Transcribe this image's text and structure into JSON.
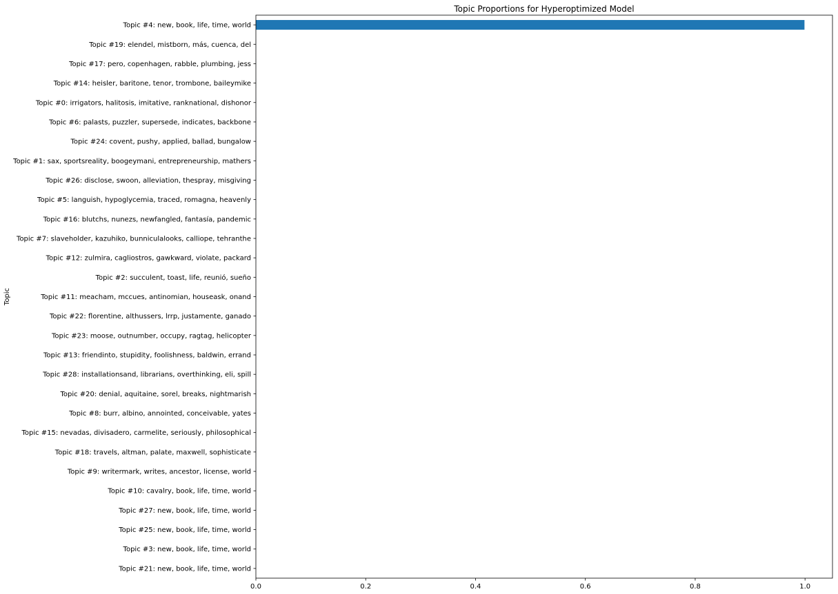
{
  "chart_data": {
    "type": "bar",
    "orientation": "horizontal",
    "title": "Topic Proportions for Hyperoptimized Model",
    "xlabel": "",
    "ylabel": "Topic",
    "xlim": [
      0,
      1.05
    ],
    "x_ticks": [
      "0.0",
      "0.2",
      "0.4",
      "0.6",
      "0.8",
      "1.0"
    ],
    "x_tick_values": [
      0,
      0.2,
      0.4,
      0.6,
      0.8,
      1.0
    ],
    "bar_color": "#1f77b4",
    "grid": false,
    "categories": [
      "Topic #4: new, book, life, time, world",
      "Topic #19: elendel, mistborn, más, cuenca, del",
      "Topic #17: pero, copenhagen, rabble, plumbing, jess",
      "Topic #14: heisler, baritone, tenor, trombone, baileymike",
      "Topic #0: irrigators, halitosis, imitative, ranknational, dishonor",
      "Topic #6: palasts, puzzler, supersede, indicates, backbone",
      "Topic #24: covent, pushy, applied, ballad, bungalow",
      "Topic #1: sax, sportsreality, boogeymani, entrepreneurship, mathers",
      "Topic #26: disclose, swoon, alleviation, thespray, misgiving",
      "Topic #5: languish, hypoglycemia, traced, romagna, heavenly",
      "Topic #16: blutchs, nunezs, newfangled, fantasía, pandemic",
      "Topic #7: slaveholder, kazuhiko, bunniculalooks, calliope, tehranthe",
      "Topic #12: zulmira, cagliostros, gawkward, violate, packard",
      "Topic #2: succulent, toast, life, reunió, sueño",
      "Topic #11: meacham, mccues, antinomian, houseask, onand",
      "Topic #22: florentine, althussers, lrrp, justamente, ganado",
      "Topic #23: moose, outnumber, occupy, ragtag, helicopter",
      "Topic #13: friendinto, stupidity, foolishness, baldwin, errand",
      "Topic #28: installationsand, librarians, overthinking, eli, spill",
      "Topic #20: denial, aquitaine, sorel, breaks, nightmarish",
      "Topic #8: burr, albino, annointed, conceivable, yates",
      "Topic #15: nevadas, divisadero, carmelite, seriously, philosophical",
      "Topic #18: travels, altman, palate, maxwell, sophisticate",
      "Topic #9: writermark, writes, ancestor, license, world",
      "Topic #10: cavalry, book, life, time, world",
      "Topic #27: new, book, life, time, world",
      "Topic #25: new, book, life, time, world",
      "Topic #3: new, book, life, time, world",
      "Topic #21: new, book, life, time, world"
    ],
    "values": [
      0.999,
      0.0001,
      0.0001,
      0.0001,
      0.0001,
      0.0001,
      0.0001,
      0.0001,
      0.0001,
      0.0001,
      0.0001,
      0.0001,
      0.0001,
      0.0001,
      0.0001,
      0.0001,
      0.0001,
      0.0001,
      0.0001,
      0.0001,
      0.0001,
      0.0001,
      0.0001,
      0.0001,
      0.0,
      0.0,
      0.0,
      0.0,
      0.0
    ]
  }
}
